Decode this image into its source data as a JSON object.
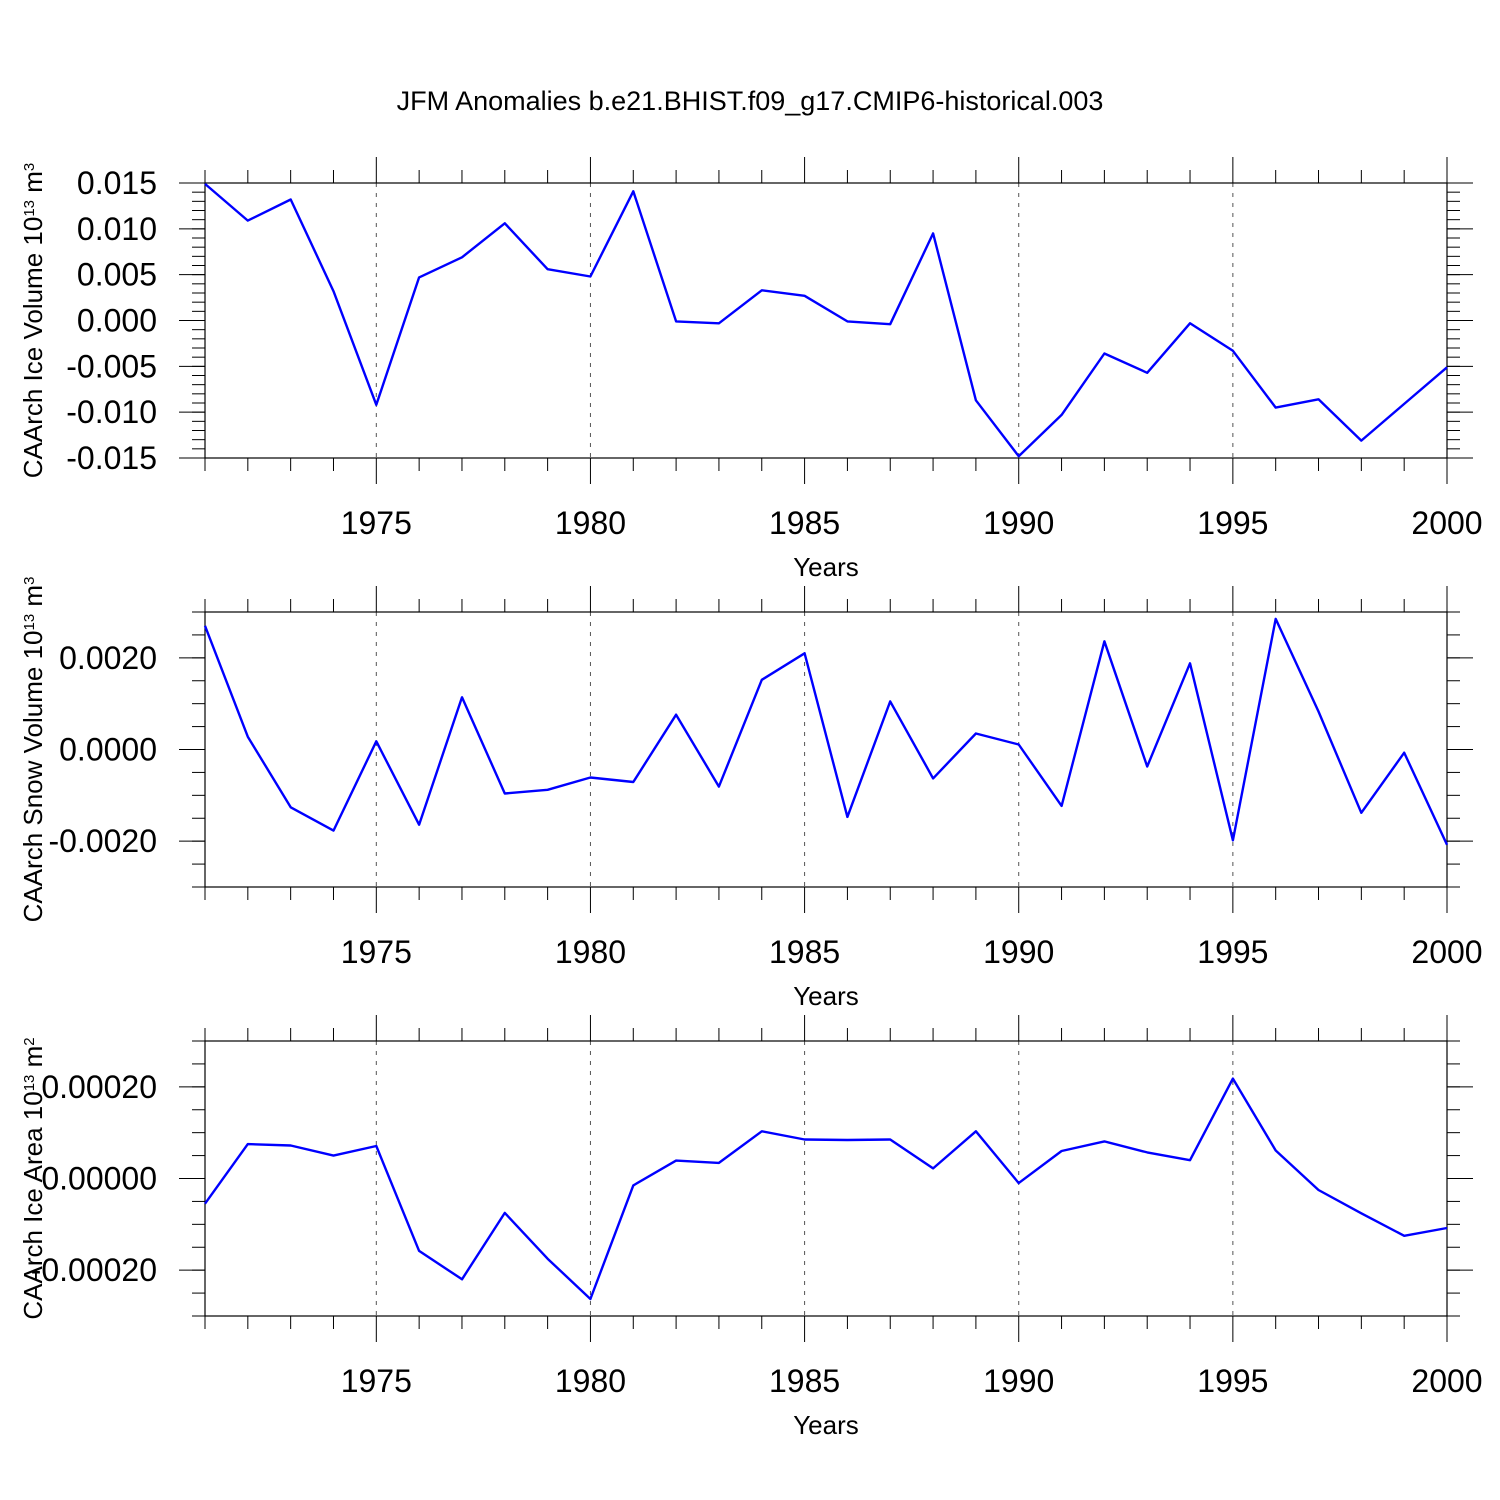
{
  "title": "JFM Anomalies b.e21.BHIST.f09_g17.CMIP6-historical.003",
  "colors": {
    "line": "#0000ff",
    "axis": "#000000",
    "grid": "#555555"
  },
  "chart_data": [
    {
      "type": "line",
      "ylabel": "CAArch Ice Volume 10",
      "ylabel_exp": "13",
      "ylabel_unit": " m",
      "ylabel_unit_exp": "3",
      "xlabel": "Years",
      "xlim": [
        1971,
        2000
      ],
      "ylim": [
        -0.015,
        0.015
      ],
      "ytick_major": [
        -0.015,
        -0.01,
        -0.005,
        0.0,
        0.005,
        0.01,
        0.015
      ],
      "ytick_labels": [
        "-0.015",
        "-0.010",
        "-0.005",
        "0.000",
        "0.005",
        "0.010",
        "0.015"
      ],
      "ytick_minor_step": 0.001,
      "xtick_major": [
        1975,
        1980,
        1985,
        1990,
        1995,
        2000
      ],
      "xtick_labels": [
        "1975",
        "1980",
        "1985",
        "1990",
        "1995",
        "2000"
      ],
      "grid_x": [
        1975,
        1980,
        1990,
        1995
      ],
      "x": [
        1971,
        1972,
        1973,
        1974,
        1975,
        1976,
        1977,
        1978,
        1979,
        1980,
        1981,
        1982,
        1983,
        1984,
        1985,
        1986,
        1987,
        1988,
        1989,
        1990,
        1991,
        1992,
        1993,
        1994,
        1995,
        1996,
        1997,
        1998,
        1999,
        2000
      ],
      "series": [
        {
          "name": "CAArch Ice Volume",
          "values": [
            0.0149,
            0.0109,
            0.0132,
            0.0032,
            -0.0092,
            0.0047,
            0.0069,
            0.0106,
            0.0056,
            0.0048,
            0.0141,
            -0.0001,
            -0.0003,
            0.0033,
            0.0027,
            -0.0001,
            -0.0004,
            0.0095,
            -0.0087,
            -0.0148,
            -0.0103,
            -0.0036,
            -0.0057,
            -0.0003,
            -0.0033,
            -0.0095,
            -0.0086,
            -0.0131,
            -0.0091,
            -0.0051
          ]
        }
      ]
    },
    {
      "type": "line",
      "ylabel": "CAArch Snow Volume 10",
      "ylabel_exp": "13",
      "ylabel_unit": " m",
      "ylabel_unit_exp": "3",
      "xlabel": "Years",
      "xlim": [
        1971,
        2000
      ],
      "ylim": [
        -0.003,
        0.003
      ],
      "ytick_major": [
        -0.002,
        0.0,
        0.002
      ],
      "ytick_labels": [
        "-0.0020",
        "0.0000",
        "0.0020"
      ],
      "ytick_minor_step": 0.0005,
      "xtick_major": [
        1975,
        1980,
        1985,
        1990,
        1995,
        2000
      ],
      "xtick_labels": [
        "1975",
        "1980",
        "1985",
        "1990",
        "1995",
        "2000"
      ],
      "grid_x": [
        1975,
        1980,
        1985,
        1990,
        1995
      ],
      "x": [
        1971,
        1972,
        1973,
        1974,
        1975,
        1976,
        1977,
        1978,
        1979,
        1980,
        1981,
        1982,
        1983,
        1984,
        1985,
        1986,
        1987,
        1988,
        1989,
        1990,
        1991,
        1992,
        1993,
        1994,
        1995,
        1996,
        1997,
        1998,
        1999,
        2000
      ],
      "series": [
        {
          "name": "CAArch Snow Volume",
          "values": [
            0.0027,
            0.00028,
            -0.00126,
            -0.00177,
            0.00018,
            -0.00164,
            0.00114,
            -0.00096,
            -0.00088,
            -0.00061,
            -0.00071,
            0.00076,
            -0.00081,
            0.00152,
            0.0021,
            -0.00147,
            0.00105,
            -0.00063,
            0.00035,
            0.00011,
            -0.00123,
            0.00236,
            -0.00037,
            0.00188,
            -0.00198,
            0.00285,
            0.00083,
            -0.00138,
            -7e-05,
            -0.00208
          ]
        }
      ]
    },
    {
      "type": "line",
      "ylabel": "CAArch Ice Area 10",
      "ylabel_exp": "13",
      "ylabel_unit": " m",
      "ylabel_unit_exp": "2",
      "xlabel": "Years",
      "xlim": [
        1971,
        2000
      ],
      "ylim": [
        -0.0003,
        0.0003
      ],
      "ytick_major": [
        -0.0002,
        0.0,
        0.0002
      ],
      "ytick_labels": [
        "-0.00020",
        "0.00000",
        "0.00020"
      ],
      "ytick_minor_step": 5e-05,
      "xtick_major": [
        1975,
        1980,
        1985,
        1990,
        1995,
        2000
      ],
      "xtick_labels": [
        "1975",
        "1980",
        "1985",
        "1990",
        "1995",
        "2000"
      ],
      "grid_x": [
        1975,
        1980,
        1985,
        1990,
        1995
      ],
      "x": [
        1971,
        1972,
        1973,
        1974,
        1975,
        1976,
        1977,
        1978,
        1979,
        1980,
        1981,
        1982,
        1983,
        1984,
        1985,
        1986,
        1987,
        1988,
        1989,
        1990,
        1991,
        1992,
        1993,
        1994,
        1995,
        1996,
        1997,
        1998,
        1999,
        2000
      ],
      "series": [
        {
          "name": "CAArch Ice Area",
          "values": [
            -5.5e-05,
            7.5e-05,
            7.2e-05,
            5e-05,
            7.1e-05,
            -0.000158,
            -0.00022,
            -7.5e-05,
            -0.000175,
            -0.000263,
            -1.5e-05,
            3.9e-05,
            3.4e-05,
            0.000103,
            8.5e-05,
            8.4e-05,
            8.5e-05,
            2.2e-05,
            0.000103,
            -1e-05,
            6e-05,
            8.1e-05,
            5.7e-05,
            4e-05,
            0.000218,
            6.1e-05,
            -2.5e-05,
            -7.6e-05,
            -0.000125,
            -0.000108
          ]
        }
      ]
    }
  ]
}
